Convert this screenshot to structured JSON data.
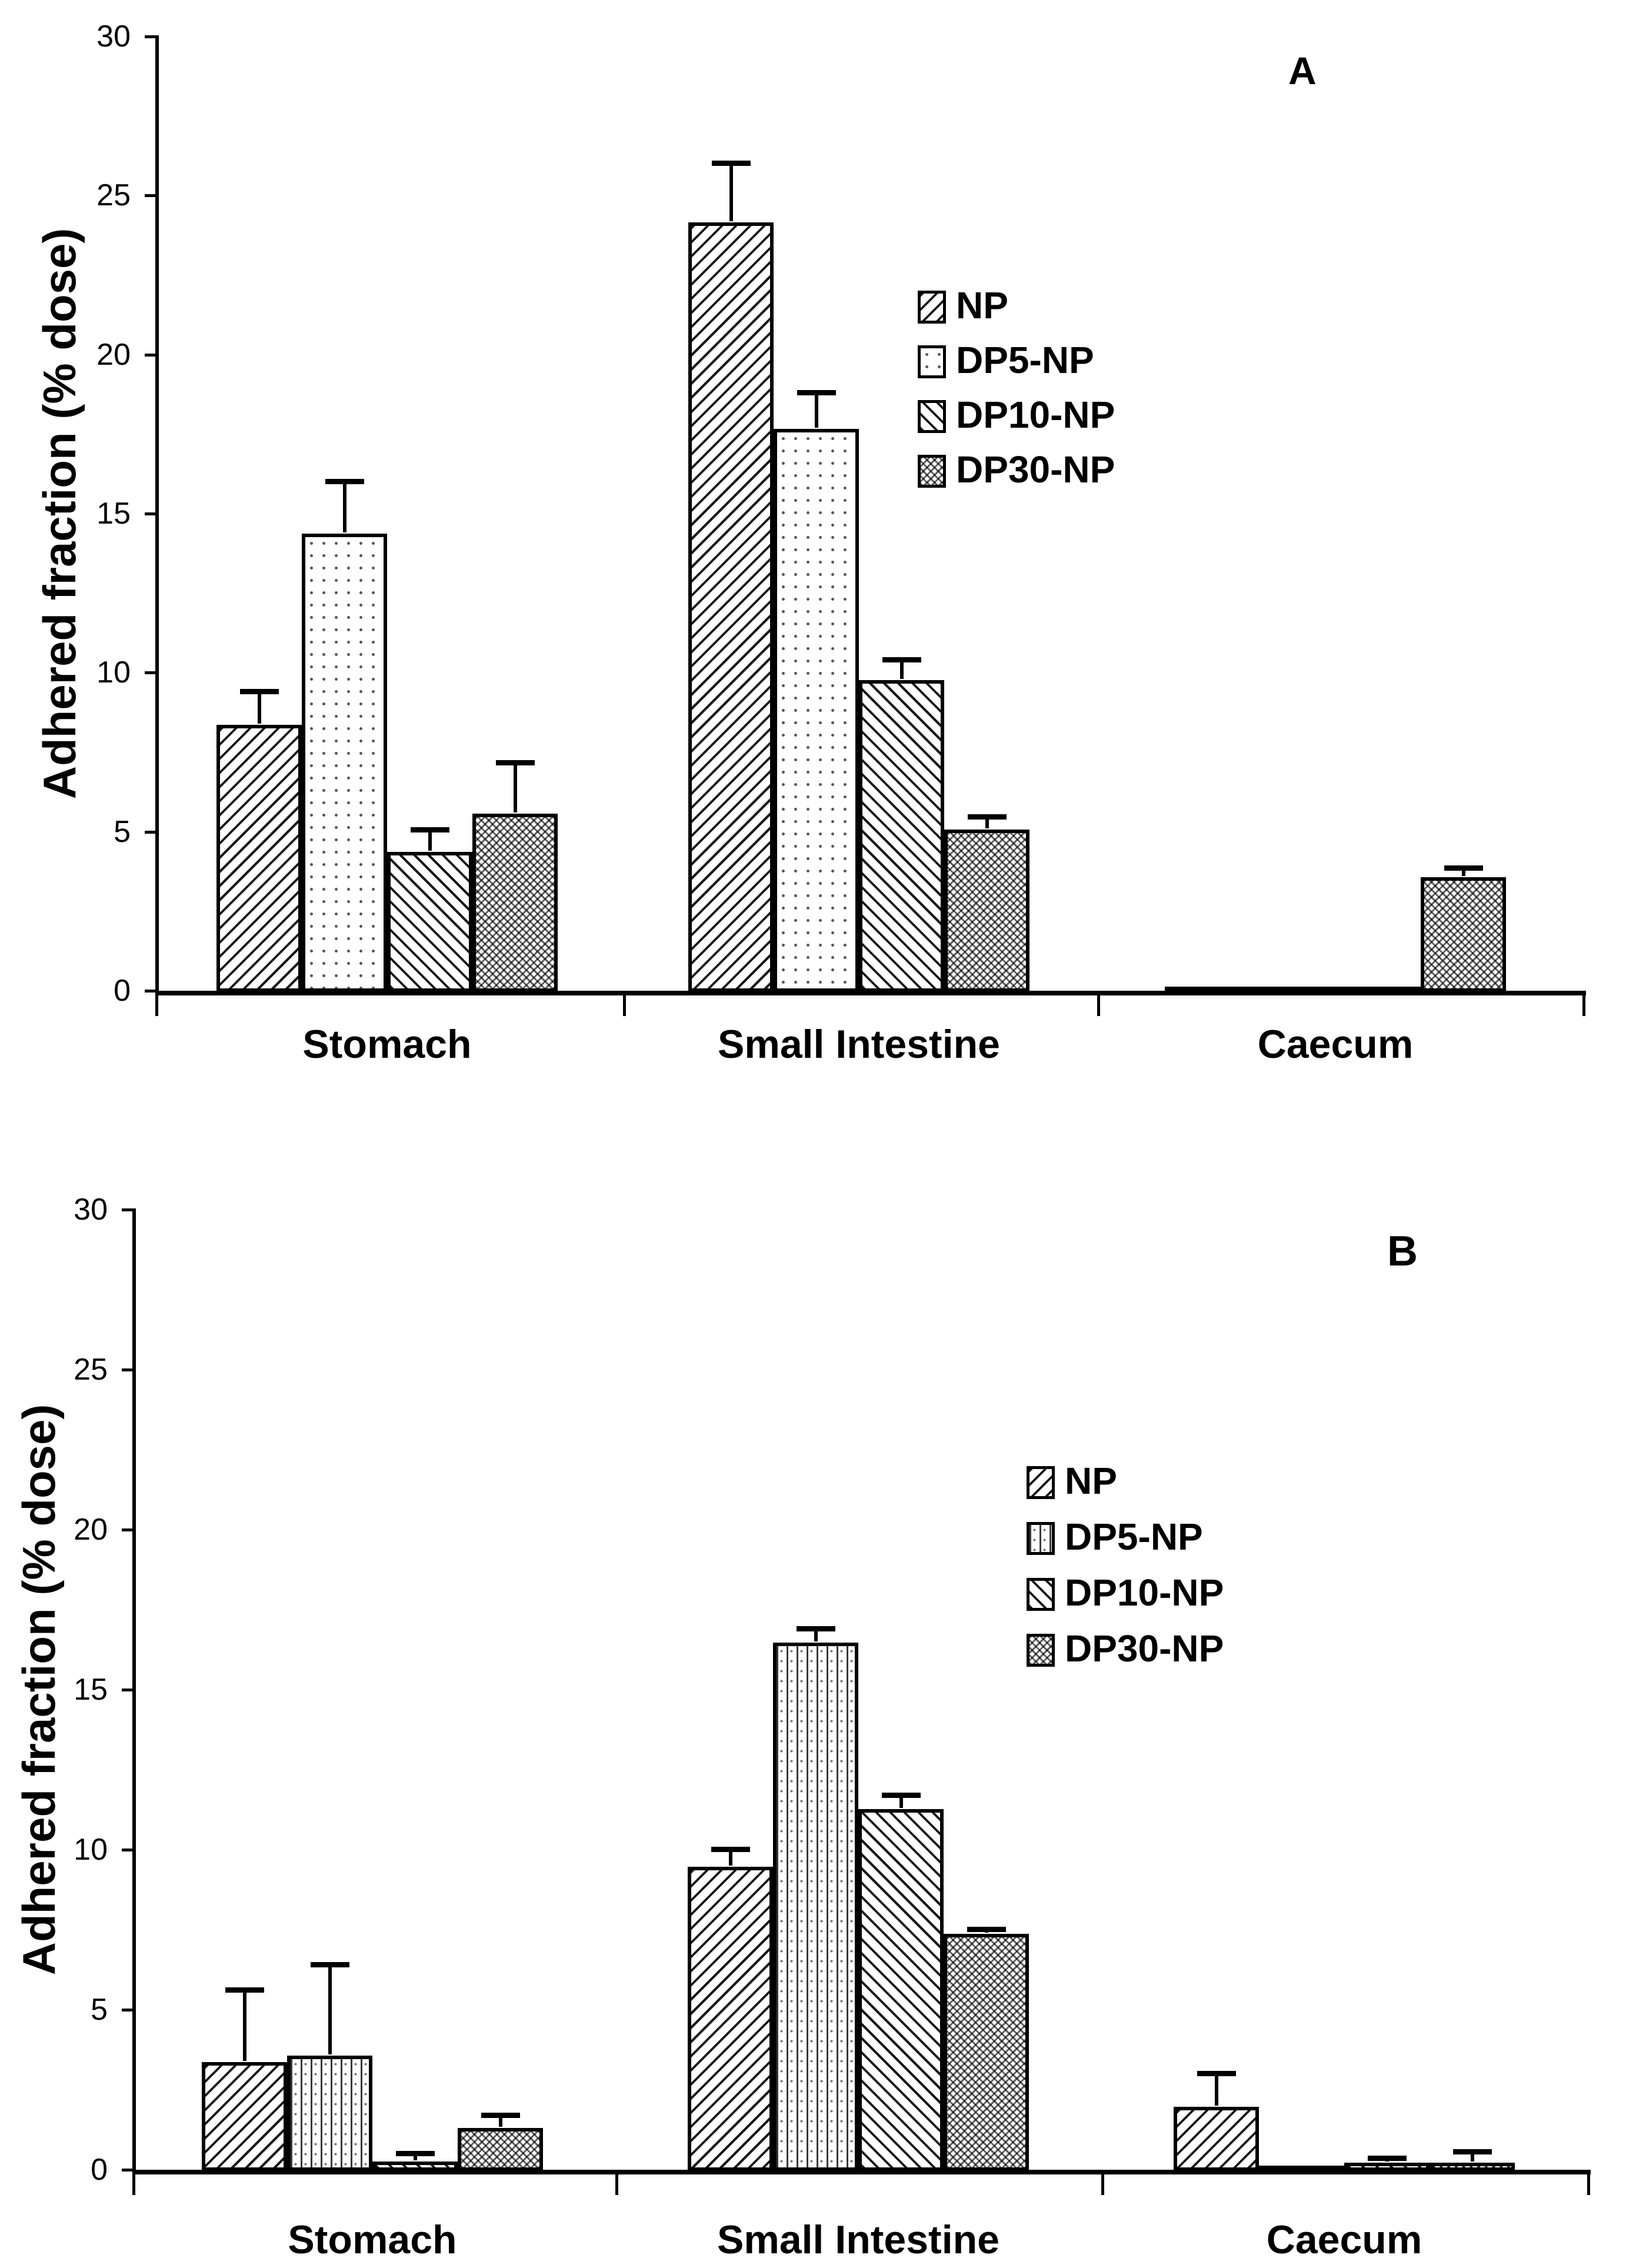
{
  "chart_data": [
    {
      "type": "bar",
      "panel_label": "A",
      "ylabel": "Adhered fraction (% dose)",
      "ylim": [
        0,
        30
      ],
      "yticks": [
        0,
        5,
        10,
        15,
        20,
        25,
        30
      ],
      "categories": [
        "Stomach",
        "Small Intestine",
        "Caecum"
      ],
      "grid": false,
      "legend_position": "inside-top-right",
      "bar_outline_color": "#000000",
      "series": [
        {
          "name": "NP",
          "pattern": "diagonal-up",
          "values": [
            8.4,
            24.2,
            0.05
          ],
          "errors": [
            1.0,
            1.8,
            0
          ]
        },
        {
          "name": "DP5-NP",
          "pattern": "dots",
          "values": [
            14.4,
            17.7,
            0.05
          ],
          "errors": [
            1.6,
            1.1,
            0
          ]
        },
        {
          "name": "DP10-NP",
          "pattern": "diagonal-down",
          "values": [
            4.4,
            9.8,
            0.05
          ],
          "errors": [
            0.65,
            0.6,
            0
          ]
        },
        {
          "name": "DP30-NP",
          "pattern": "crosshatch",
          "values": [
            5.6,
            5.1,
            3.6
          ],
          "errors": [
            1.55,
            0.35,
            0.25
          ]
        }
      ]
    },
    {
      "type": "bar",
      "panel_label": "B",
      "ylabel": "Adhered fraction (% dose)",
      "ylim": [
        0,
        30
      ],
      "yticks": [
        0,
        5,
        10,
        15,
        20,
        25,
        30
      ],
      "categories": [
        "Stomach",
        "Small Intestine",
        "Caecum"
      ],
      "grid": false,
      "legend_position": "inside-top-right",
      "bar_outline_color": "#000000",
      "series": [
        {
          "name": "NP",
          "pattern": "diagonal-up",
          "values": [
            3.4,
            9.5,
            2.0
          ],
          "errors": [
            2.2,
            0.5,
            1.0
          ]
        },
        {
          "name": "DP5-NP",
          "pattern": "vertical-dots",
          "values": [
            3.6,
            16.5,
            0.05
          ],
          "errors": [
            2.8,
            0.4,
            0
          ]
        },
        {
          "name": "DP10-NP",
          "pattern": "diagonal-down",
          "values": [
            0.3,
            11.3,
            0.25
          ],
          "errors": [
            0.2,
            0.4,
            0.1
          ]
        },
        {
          "name": "DP30-NP",
          "pattern": "crosshatch",
          "values": [
            1.35,
            7.4,
            0.25
          ],
          "errors": [
            0.35,
            0.1,
            0.3
          ]
        }
      ]
    }
  ]
}
